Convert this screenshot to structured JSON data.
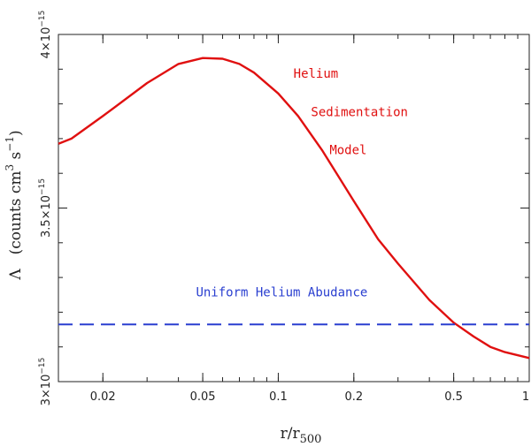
{
  "chart_data": {
    "type": "line",
    "title": "",
    "xlabel": {
      "base": "r/r",
      "sub": "500"
    },
    "ylabel": {
      "symbol": "Λ",
      "open": "(counts cm",
      "sup1": "3",
      "mid": " s",
      "sup2": "−1",
      "close": ")"
    },
    "xscale": "log",
    "xlim": [
      0.0133,
      1
    ],
    "ylim": [
      3e-15,
      4e-15
    ],
    "x_ticks": [
      {
        "value": 0.02,
        "label": "0.02"
      },
      {
        "value": 0.05,
        "label": "0.05"
      },
      {
        "value": 0.1,
        "label": "0.1"
      },
      {
        "value": 0.2,
        "label": "0.2"
      },
      {
        "value": 0.5,
        "label": "0.5"
      },
      {
        "value": 1,
        "label": "1"
      }
    ],
    "y_ticks": [
      {
        "value": 3e-15,
        "mantissa": "3×10",
        "exp": "−15"
      },
      {
        "value": 3.5e-15,
        "mantissa": "3.5×10",
        "exp": "−15"
      },
      {
        "value": 4e-15,
        "mantissa": "4×10",
        "exp": "−15"
      }
    ],
    "grid": false,
    "series": [
      {
        "name": "Helium Sedimentation Model",
        "color": "#e01010",
        "style": "solid",
        "x": [
          0.0133,
          0.015,
          0.02,
          0.03,
          0.04,
          0.05,
          0.06,
          0.07,
          0.08,
          0.1,
          0.12,
          0.15,
          0.2,
          0.25,
          0.3,
          0.4,
          0.5,
          0.6,
          0.7,
          0.8,
          1.0
        ],
        "y": [
          3.685e-15,
          3.7e-15,
          3.765e-15,
          3.86e-15,
          3.915e-15,
          3.932e-15,
          3.93e-15,
          3.915e-15,
          3.89e-15,
          3.83e-15,
          3.765e-15,
          3.665e-15,
          3.52e-15,
          3.41e-15,
          3.34e-15,
          3.235e-15,
          3.17e-15,
          3.13e-15,
          3.1e-15,
          3.085e-15,
          3.068e-15
        ]
      },
      {
        "name": "Uniform Helium Abudance",
        "color": "#2a3fd0",
        "style": "dashed",
        "x": [
          0.0133,
          1
        ],
        "y": [
          3.165e-15,
          3.165e-15
        ]
      }
    ],
    "annotations": [
      {
        "id": "helium",
        "text": "Helium",
        "color": "#e01010",
        "x": 0.115,
        "y": 3.875e-15
      },
      {
        "id": "sedimentation",
        "text": "Sedimentation",
        "color": "#e01010",
        "x": 0.135,
        "y": 3.765e-15
      },
      {
        "id": "model",
        "text": "Model",
        "color": "#e01010",
        "x": 0.16,
        "y": 3.655e-15
      },
      {
        "id": "uniform",
        "text": "Uniform Helium Abudance",
        "color": "#2a3fd0",
        "x": 0.047,
        "y": 3.245e-15
      }
    ]
  }
}
